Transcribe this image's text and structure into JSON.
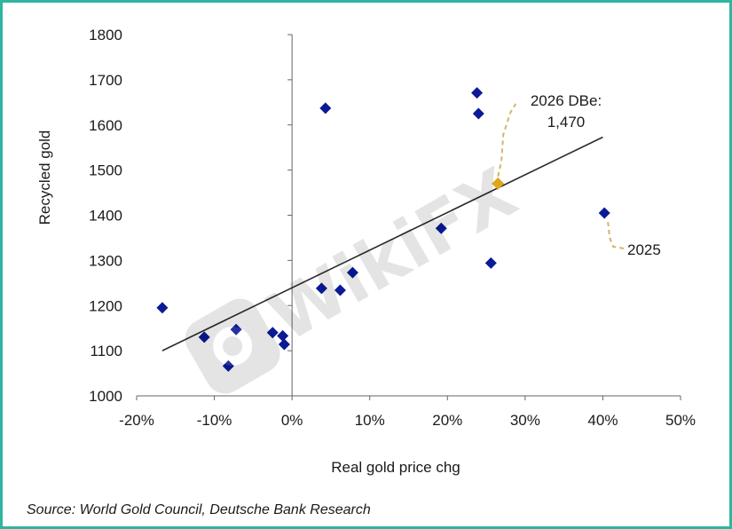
{
  "chart_data": {
    "type": "scatter",
    "xlabel": "Real gold price chg",
    "ylabel": "Recycled gold",
    "xlim": [
      -20,
      50
    ],
    "ylim": [
      1000,
      1800
    ],
    "x_ticks": [
      "-20%",
      "-10%",
      "0%",
      "10%",
      "20%",
      "30%",
      "40%",
      "50%"
    ],
    "y_ticks": [
      "1000",
      "1100",
      "1200",
      "1300",
      "1400",
      "1500",
      "1600",
      "1700",
      "1800"
    ],
    "grid": false,
    "points": [
      {
        "x": -16.7,
        "y": 1195
      },
      {
        "x": -11.3,
        "y": 1130
      },
      {
        "x": -7.2,
        "y": 1147
      },
      {
        "x": -8.2,
        "y": 1066
      },
      {
        "x": -2.5,
        "y": 1140
      },
      {
        "x": -1.2,
        "y": 1133
      },
      {
        "x": -1.0,
        "y": 1114
      },
      {
        "x": 3.8,
        "y": 1238
      },
      {
        "x": 4.3,
        "y": 1637
      },
      {
        "x": 6.2,
        "y": 1234
      },
      {
        "x": 7.8,
        "y": 1273
      },
      {
        "x": 19.2,
        "y": 1371
      },
      {
        "x": 23.8,
        "y": 1671
      },
      {
        "x": 24.0,
        "y": 1625
      },
      {
        "x": 25.6,
        "y": 1294
      },
      {
        "x": 40.2,
        "y": 1405
      }
    ],
    "highlight_point": {
      "x": 26.5,
      "y": 1470,
      "color": "#e0a51c"
    },
    "trendline": {
      "x": [
        -16.7,
        40.0
      ],
      "y": [
        1100,
        1573
      ]
    },
    "annotations": [
      {
        "lines": [
          "2026 DBe:",
          "1,470"
        ],
        "target_x": 26.5,
        "target_y": 1470
      },
      {
        "lines": [
          "2025"
        ],
        "target_x": 40.2,
        "target_y": 1405
      }
    ],
    "colors": {
      "points": "#0b1a96",
      "trendline": "#2a2a2a",
      "leader": "#d4b46a",
      "frame": "#2fb5a0"
    }
  },
  "source_note": "Source: World Gold Council, Deutsche Bank Research",
  "watermark": {
    "text": "WikiFX",
    "icon": "wikifx-logo-icon"
  }
}
